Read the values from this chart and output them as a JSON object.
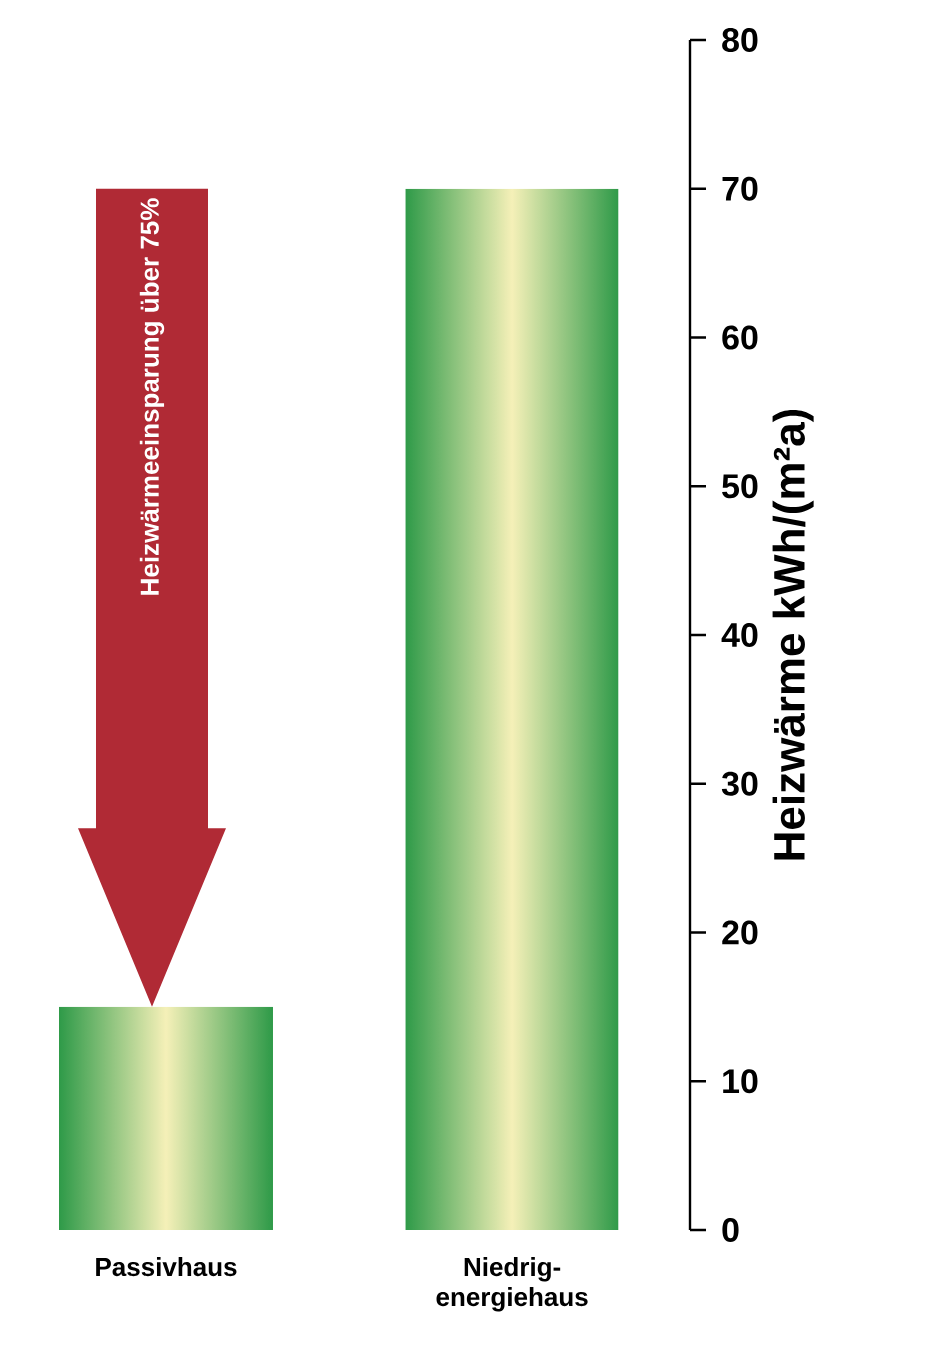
{
  "chart_data": {
    "type": "bar",
    "ylabel": "Heizwärme kWh/(m²a)",
    "categories": [
      "Passivhaus",
      "Niedrig-energiehaus"
    ],
    "values": [
      15,
      70
    ],
    "color": "#2e9a48",
    "ylim": [
      0,
      80
    ],
    "yticks": [
      0,
      10,
      20,
      30,
      40,
      50,
      60,
      70,
      80
    ],
    "annotations": [
      "Heizwärmeeinsparung über 75%"
    ]
  }
}
